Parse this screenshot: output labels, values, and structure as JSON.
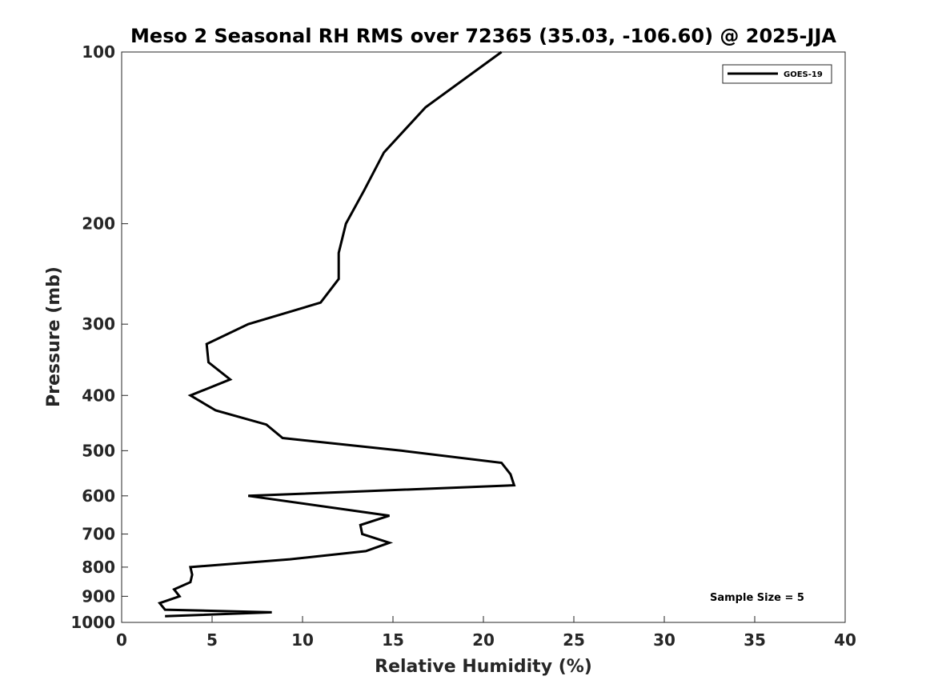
{
  "chart_data": {
    "type": "line",
    "title": "Meso 2 Seasonal RH RMS over 72365 (35.03, -106.60) @ 2025-JJA",
    "xlabel": "Relative Humidity (%)",
    "ylabel": "Pressure (mb)",
    "xlim": [
      0,
      40
    ],
    "ylim": [
      1000,
      100
    ],
    "yscale": "log",
    "y_reversed": true,
    "x_ticks": [
      0,
      5,
      10,
      15,
      20,
      25,
      30,
      35,
      40
    ],
    "y_ticks": [
      100,
      200,
      300,
      400,
      500,
      600,
      700,
      800,
      900,
      1000
    ],
    "grid": false,
    "legend_position": "top-right",
    "series": [
      {
        "name": "GOES-19",
        "color": "#000000",
        "points": [
          [
            21.0,
            100
          ],
          [
            16.8,
            125
          ],
          [
            14.5,
            150
          ],
          [
            13.4,
            175
          ],
          [
            12.4,
            200
          ],
          [
            12.0,
            225
          ],
          [
            12.0,
            250
          ],
          [
            11.0,
            275
          ],
          [
            7.0,
            300
          ],
          [
            4.7,
            325
          ],
          [
            4.8,
            350
          ],
          [
            6.0,
            375
          ],
          [
            3.8,
            400
          ],
          [
            5.2,
            425
          ],
          [
            8.0,
            450
          ],
          [
            8.9,
            475
          ],
          [
            15.5,
            500
          ],
          [
            21.0,
            525
          ],
          [
            21.5,
            550
          ],
          [
            21.7,
            575
          ],
          [
            7.0,
            600
          ],
          [
            14.8,
            650
          ],
          [
            13.2,
            675
          ],
          [
            13.3,
            700
          ],
          [
            14.8,
            725
          ],
          [
            13.5,
            750
          ],
          [
            9.3,
            775
          ],
          [
            3.8,
            800
          ],
          [
            3.9,
            825
          ],
          [
            3.8,
            850
          ],
          [
            2.9,
            875
          ],
          [
            3.2,
            900
          ],
          [
            2.1,
            925
          ],
          [
            2.4,
            950
          ],
          [
            8.3,
            960
          ],
          [
            2.4,
            975
          ]
        ]
      }
    ],
    "annotations": [
      {
        "text": "Sample Size = 5"
      }
    ]
  }
}
